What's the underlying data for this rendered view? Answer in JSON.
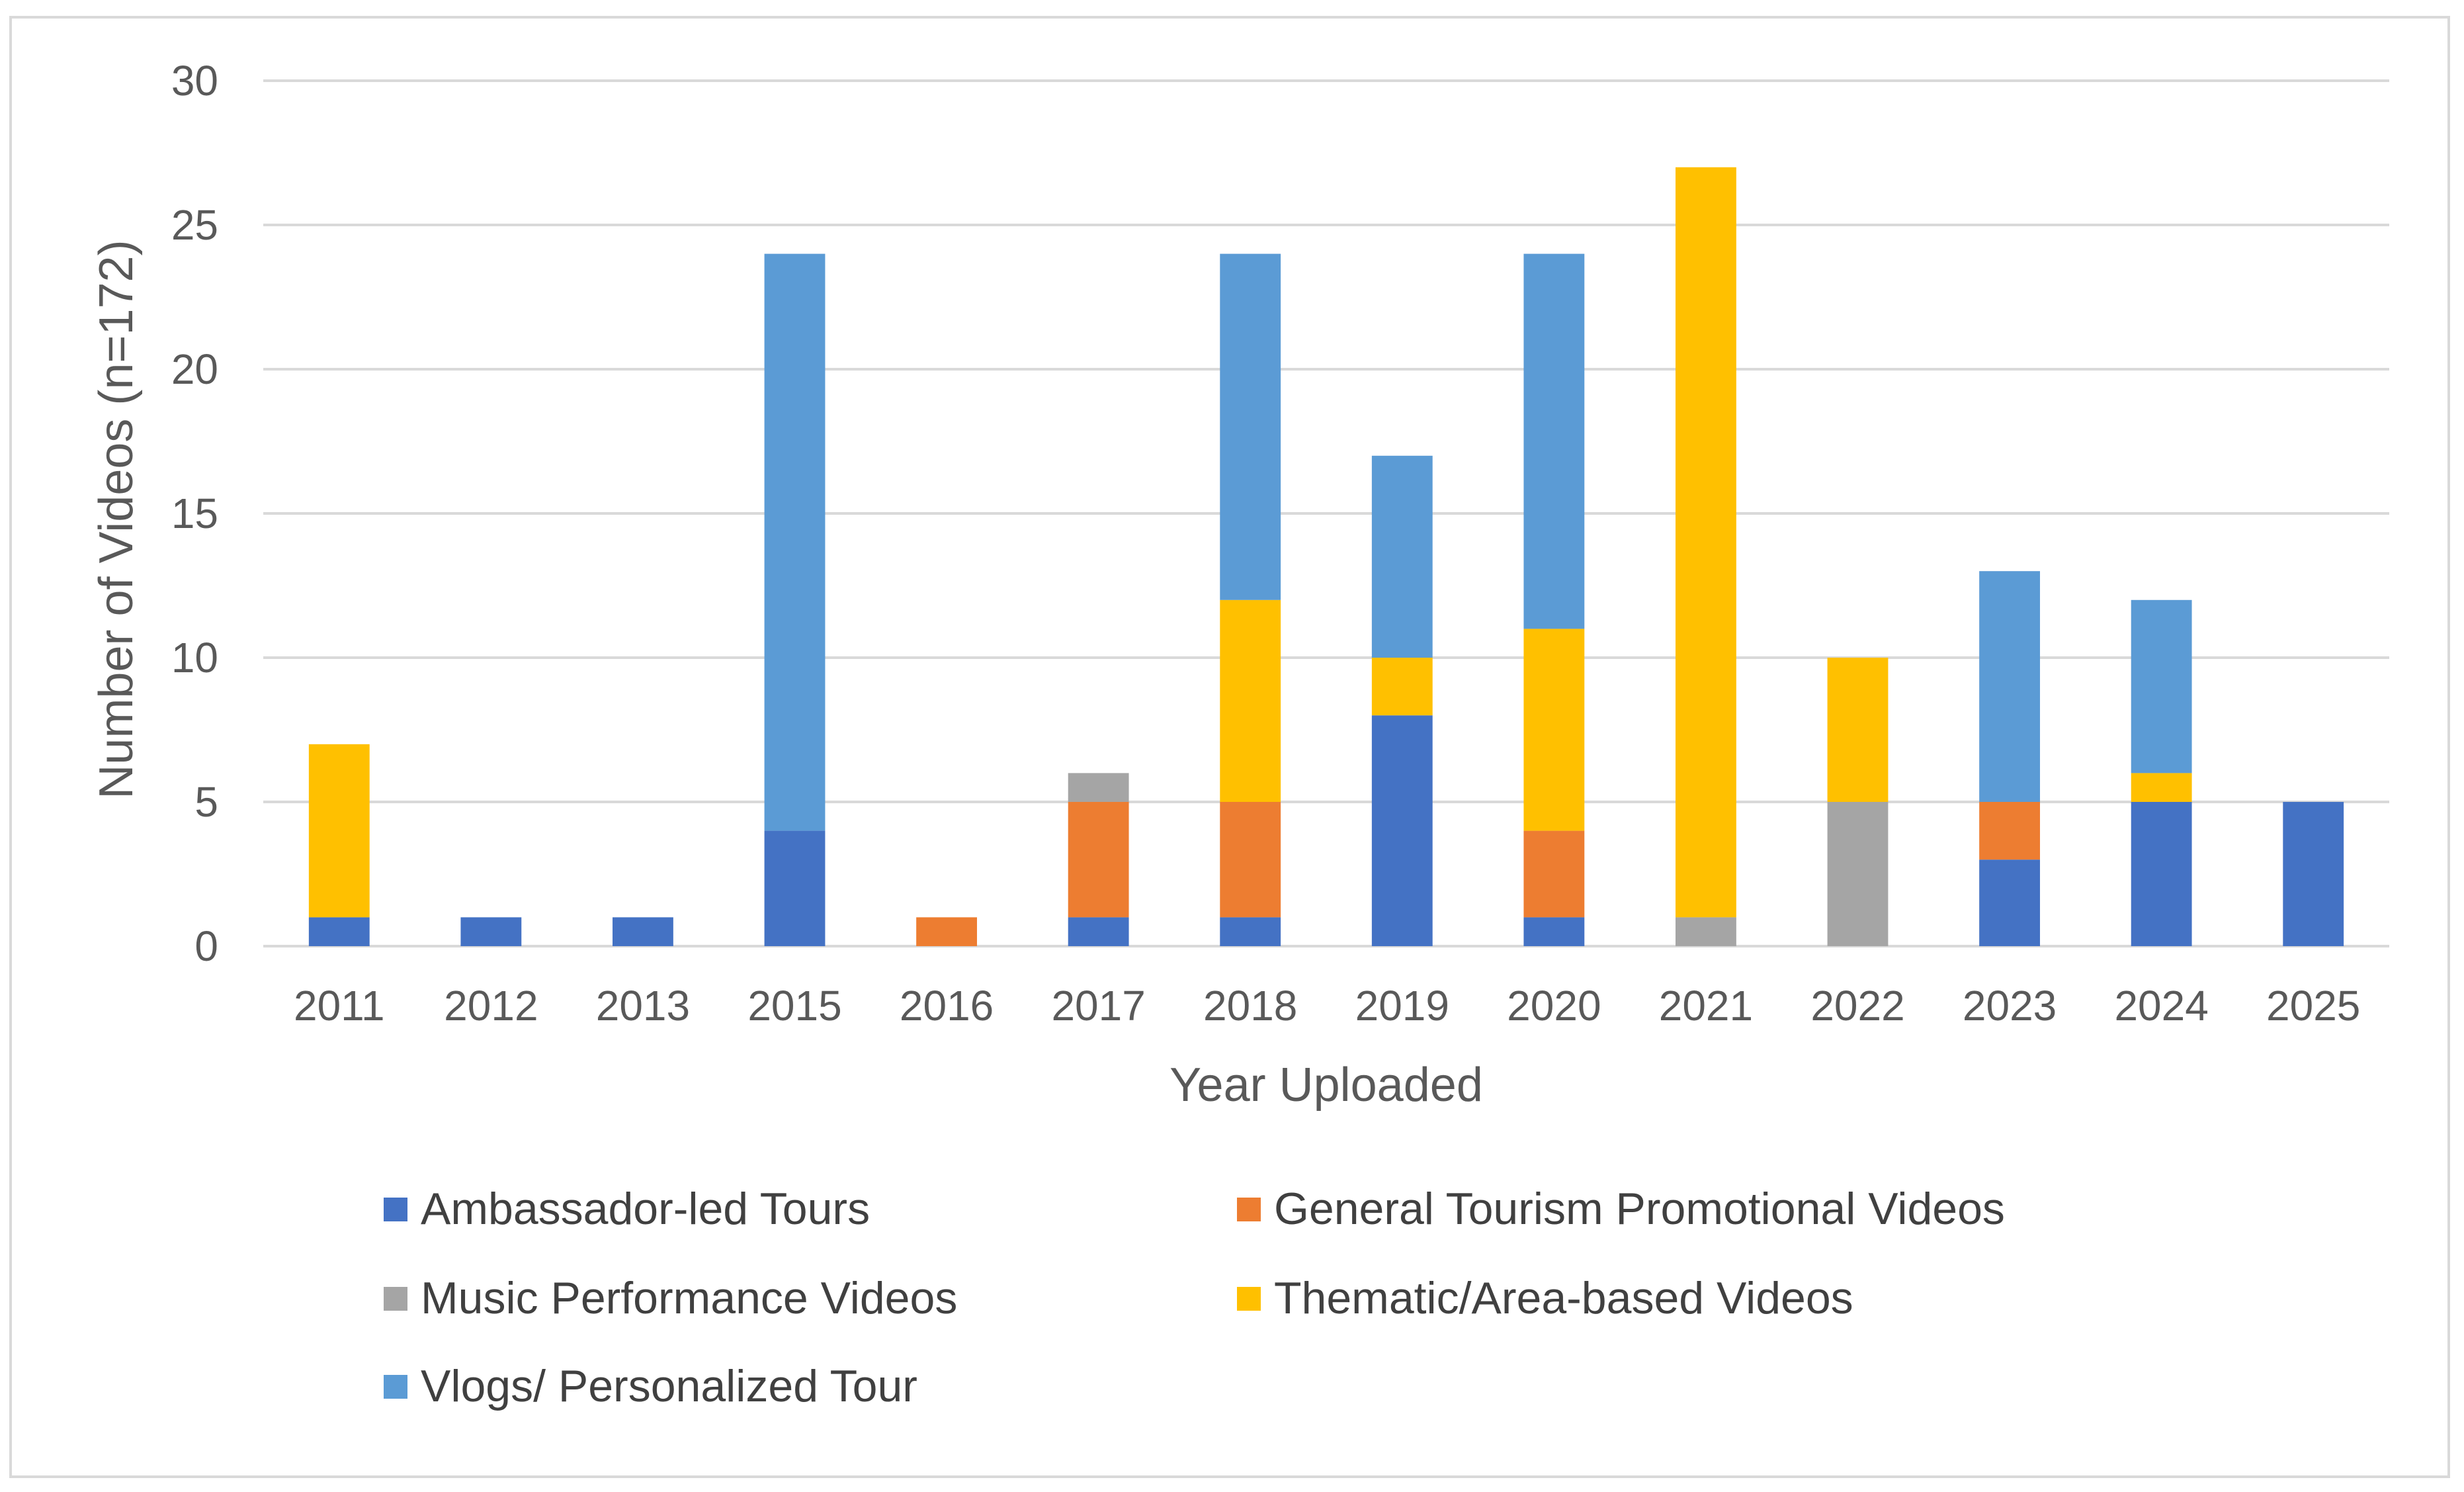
{
  "chart_data": {
    "type": "bar",
    "stacked": true,
    "title": "",
    "xlabel": "Year Uploaded",
    "ylabel": "Number of Videos (n=172)",
    "ylim": [
      0,
      30
    ],
    "yticks": [
      "0",
      "5",
      "10",
      "15",
      "20",
      "25",
      "30"
    ],
    "grid": true,
    "legend_position": "bottom",
    "categories": [
      "2011",
      "2012",
      "2013",
      "2015",
      "2016",
      "2017",
      "2018",
      "2019",
      "2020",
      "2021",
      "2022",
      "2023",
      "2024",
      "2025"
    ],
    "series": [
      {
        "name": "Ambassador-led Tours",
        "color": "#4472C4",
        "values": [
          1,
          1,
          1,
          4,
          0,
          1,
          1,
          8,
          1,
          0,
          0,
          3,
          5,
          5
        ]
      },
      {
        "name": "General Tourism Promotional Videos",
        "color": "#ED7D31",
        "values": [
          0,
          0,
          0,
          0,
          1,
          4,
          4,
          0,
          3,
          0,
          0,
          2,
          0,
          0
        ]
      },
      {
        "name": "Music Performance Videos",
        "color": "#A5A5A5",
        "values": [
          0,
          0,
          0,
          0,
          0,
          1,
          0,
          0,
          0,
          1,
          5,
          0,
          0,
          0
        ]
      },
      {
        "name": "Thematic/Area-based Videos",
        "color": "#FFC000",
        "values": [
          6,
          0,
          0,
          0,
          0,
          0,
          7,
          2,
          7,
          26,
          5,
          0,
          1,
          0
        ]
      },
      {
        "name": "Vlogs/ Personalized Tour",
        "color": "#5B9BD5",
        "values": [
          0,
          0,
          0,
          20,
          0,
          0,
          12,
          7,
          13,
          0,
          0,
          8,
          6,
          0
        ]
      }
    ]
  },
  "colors": {
    "gridline": "#d9d9d9",
    "axis_text": "#595959"
  }
}
